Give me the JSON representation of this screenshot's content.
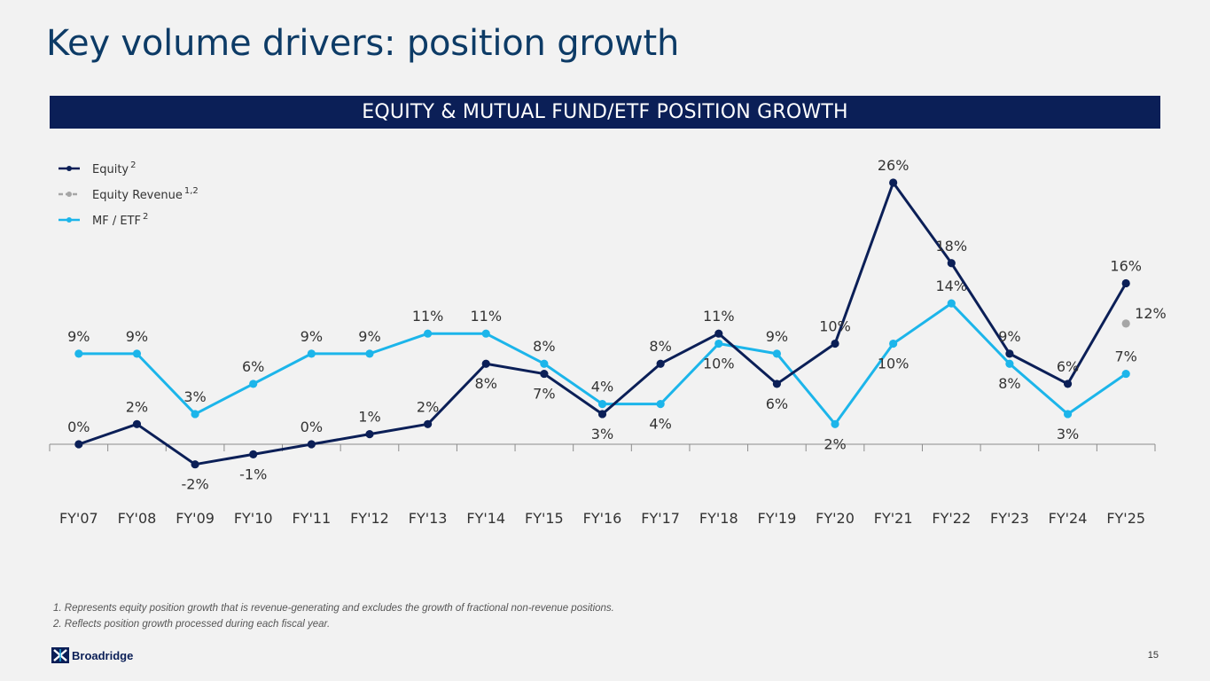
{
  "page": {
    "title": "Key volume drivers: position growth",
    "banner": "EQUITY & MUTUAL FUND/ETF POSITION GROWTH",
    "footnotes": [
      "1. Represents equity position growth that is revenue-generating and excludes the growth of fractional non-revenue positions.",
      "2. Reflects position growth processed during each fiscal year."
    ],
    "logo_text": "Broadridge",
    "page_number": "15"
  },
  "chart_data": {
    "type": "line",
    "categories": [
      "FY'07",
      "FY'08",
      "FY'09",
      "FY'10",
      "FY'11",
      "FY'12",
      "FY'13",
      "FY'14",
      "FY'15",
      "FY'16",
      "FY'17",
      "FY'18",
      "FY'19",
      "FY'20",
      "FY'21",
      "FY'22",
      "FY'23",
      "FY'24",
      "FY'25"
    ],
    "ylim": [
      -2,
      26
    ],
    "grid": false,
    "legend_position": "top-left",
    "series": [
      {
        "name": "Equity",
        "superscript": "2",
        "color": "#0b1f57",
        "values": [
          0,
          2,
          -2,
          -1,
          0,
          1,
          2,
          8,
          7,
          3,
          8,
          11,
          6,
          10,
          26,
          18,
          9,
          6,
          16
        ],
        "labels": [
          "0%",
          "2%",
          "-2%",
          "-1%",
          "0%",
          "1%",
          "2%",
          "8%",
          "7%",
          "3%",
          "8%",
          "11%",
          "6%",
          "10%",
          "26%",
          "18%",
          "9%",
          "6%",
          "16%"
        ]
      },
      {
        "name": "Equity Revenue",
        "superscript": "1,2",
        "color": "#a6a6a6",
        "dashed": true,
        "values": [
          null,
          null,
          null,
          null,
          null,
          null,
          null,
          null,
          null,
          null,
          null,
          null,
          null,
          null,
          null,
          null,
          null,
          null,
          12
        ],
        "labels": [
          "",
          "",
          "",
          "",
          "",
          "",
          "",
          "",
          "",
          "",
          "",
          "",
          "",
          "",
          "",
          "",
          "",
          "",
          "12%"
        ]
      },
      {
        "name": "MF / ETF",
        "superscript": "2",
        "color": "#1cb5ea",
        "values": [
          9,
          9,
          3,
          6,
          9,
          9,
          11,
          11,
          8,
          4,
          4,
          10,
          9,
          2,
          10,
          14,
          8,
          3,
          7
        ],
        "labels": [
          "9%",
          "9%",
          "3%",
          "6%",
          "9%",
          "9%",
          "11%",
          "11%",
          "8%",
          "4%",
          "4%",
          "10%",
          "9%",
          "2%",
          "10%",
          "14%",
          "8%",
          "3%",
          "7%"
        ]
      }
    ]
  }
}
